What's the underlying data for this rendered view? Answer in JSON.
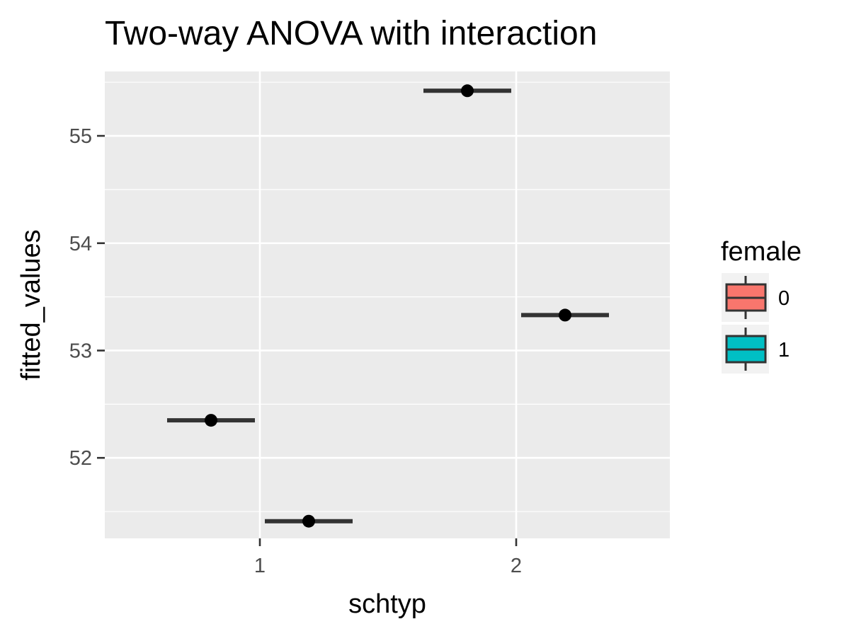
{
  "chart_data": {
    "type": "boxplot",
    "title": "Two-way ANOVA with interaction",
    "xlabel": "schtyp",
    "ylabel": "fitted_values",
    "categories": [
      "1",
      "2"
    ],
    "ylim": [
      51.25,
      55.6
    ],
    "y_ticks": [
      52,
      53,
      54,
      55
    ],
    "grid": true,
    "legend": {
      "title": "female",
      "position": "right",
      "entries": [
        {
          "label": "0",
          "color": "#F8766D"
        },
        {
          "label": "1",
          "color": "#00BFC4"
        }
      ]
    },
    "series": [
      {
        "name": "0",
        "values": [
          52.35,
          55.42
        ]
      },
      {
        "name": "1",
        "values": [
          51.41,
          53.33
        ]
      }
    ]
  },
  "colors": {
    "panel_background": "#EBEBEB",
    "grid_line": "#FFFFFF",
    "box_line": "#333333",
    "point": "#000000"
  }
}
